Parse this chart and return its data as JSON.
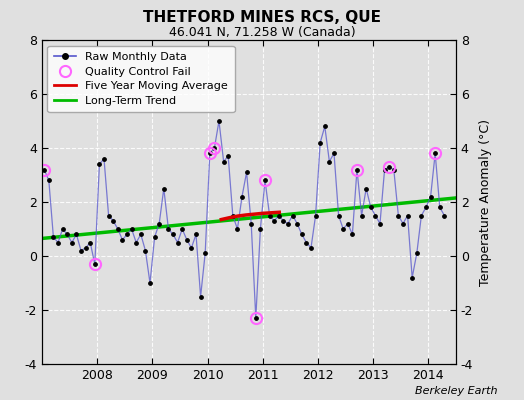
{
  "title": "THETFORD MINES RCS, QUE",
  "subtitle": "46.041 N, 71.258 W (Canada)",
  "ylabel": "Temperature Anomaly (°C)",
  "credit": "Berkeley Earth",
  "ylim": [
    -4,
    8
  ],
  "yticks": [
    -4,
    -2,
    0,
    2,
    4,
    6,
    8
  ],
  "xlim": [
    2007.0,
    2014.5
  ],
  "xtick_labels": [
    "2008",
    "2009",
    "2010",
    "2011",
    "2012",
    "2013",
    "2014"
  ],
  "xtick_positions": [
    2008,
    2009,
    2010,
    2011,
    2012,
    2013,
    2014
  ],
  "bg_color": "#e0e0e0",
  "plot_bg_color": "#e0e0e0",
  "raw_color": "#5555cc",
  "qc_color": "#ff66ff",
  "ma_color": "#dd0000",
  "trend_color": "#00bb00",
  "raw_data": [
    [
      2007.042,
      3.2
    ],
    [
      2007.125,
      2.8
    ],
    [
      2007.208,
      0.7
    ],
    [
      2007.292,
      0.5
    ],
    [
      2007.375,
      1.0
    ],
    [
      2007.458,
      0.8
    ],
    [
      2007.542,
      0.5
    ],
    [
      2007.625,
      0.8
    ],
    [
      2007.708,
      0.2
    ],
    [
      2007.792,
      0.3
    ],
    [
      2007.875,
      0.5
    ],
    [
      2007.958,
      -0.3
    ],
    [
      2008.042,
      3.4
    ],
    [
      2008.125,
      3.6
    ],
    [
      2008.208,
      1.5
    ],
    [
      2008.292,
      1.3
    ],
    [
      2008.375,
      1.0
    ],
    [
      2008.458,
      0.6
    ],
    [
      2008.542,
      0.8
    ],
    [
      2008.625,
      1.0
    ],
    [
      2008.708,
      0.5
    ],
    [
      2008.792,
      0.8
    ],
    [
      2008.875,
      0.2
    ],
    [
      2008.958,
      -1.0
    ],
    [
      2009.042,
      0.7
    ],
    [
      2009.125,
      1.2
    ],
    [
      2009.208,
      2.5
    ],
    [
      2009.292,
      1.0
    ],
    [
      2009.375,
      0.8
    ],
    [
      2009.458,
      0.5
    ],
    [
      2009.542,
      1.0
    ],
    [
      2009.625,
      0.6
    ],
    [
      2009.708,
      0.3
    ],
    [
      2009.792,
      0.8
    ],
    [
      2009.875,
      -1.5
    ],
    [
      2009.958,
      0.1
    ],
    [
      2010.042,
      3.8
    ],
    [
      2010.125,
      4.0
    ],
    [
      2010.208,
      5.0
    ],
    [
      2010.292,
      3.5
    ],
    [
      2010.375,
      3.7
    ],
    [
      2010.458,
      1.5
    ],
    [
      2010.542,
      1.0
    ],
    [
      2010.625,
      2.2
    ],
    [
      2010.708,
      3.1
    ],
    [
      2010.792,
      1.2
    ],
    [
      2010.875,
      -2.3
    ],
    [
      2010.958,
      1.0
    ],
    [
      2011.042,
      2.8
    ],
    [
      2011.125,
      1.5
    ],
    [
      2011.208,
      1.3
    ],
    [
      2011.292,
      1.5
    ],
    [
      2011.375,
      1.3
    ],
    [
      2011.458,
      1.2
    ],
    [
      2011.542,
      1.5
    ],
    [
      2011.625,
      1.2
    ],
    [
      2011.708,
      0.8
    ],
    [
      2011.792,
      0.5
    ],
    [
      2011.875,
      0.3
    ],
    [
      2011.958,
      1.5
    ],
    [
      2012.042,
      4.2
    ],
    [
      2012.125,
      4.8
    ],
    [
      2012.208,
      3.5
    ],
    [
      2012.292,
      3.8
    ],
    [
      2012.375,
      1.5
    ],
    [
      2012.458,
      1.0
    ],
    [
      2012.542,
      1.2
    ],
    [
      2012.625,
      0.8
    ],
    [
      2012.708,
      3.2
    ],
    [
      2012.792,
      1.5
    ],
    [
      2012.875,
      2.5
    ],
    [
      2012.958,
      1.8
    ],
    [
      2013.042,
      1.5
    ],
    [
      2013.125,
      1.2
    ],
    [
      2013.208,
      3.2
    ],
    [
      2013.292,
      3.3
    ],
    [
      2013.375,
      3.2
    ],
    [
      2013.458,
      1.5
    ],
    [
      2013.542,
      1.2
    ],
    [
      2013.625,
      1.5
    ],
    [
      2013.708,
      -0.8
    ],
    [
      2013.792,
      0.1
    ],
    [
      2013.875,
      1.5
    ],
    [
      2013.958,
      1.8
    ],
    [
      2014.042,
      2.2
    ],
    [
      2014.125,
      3.8
    ],
    [
      2014.208,
      1.8
    ],
    [
      2014.292,
      1.5
    ]
  ],
  "qc_fail_points": [
    [
      2007.042,
      3.2
    ],
    [
      2007.958,
      -0.3
    ],
    [
      2010.042,
      3.8
    ],
    [
      2010.125,
      4.0
    ],
    [
      2010.875,
      -2.3
    ],
    [
      2011.042,
      2.8
    ],
    [
      2012.708,
      3.2
    ],
    [
      2013.292,
      3.3
    ],
    [
      2014.125,
      3.8
    ]
  ],
  "moving_avg": [
    [
      2010.25,
      1.35
    ],
    [
      2010.4,
      1.42
    ],
    [
      2010.55,
      1.48
    ],
    [
      2010.7,
      1.52
    ],
    [
      2010.85,
      1.55
    ],
    [
      2011.0,
      1.58
    ],
    [
      2011.15,
      1.6
    ],
    [
      2011.3,
      1.62
    ]
  ],
  "trend_x": [
    2007.0,
    2014.5
  ],
  "trend_y": [
    0.65,
    2.15
  ]
}
